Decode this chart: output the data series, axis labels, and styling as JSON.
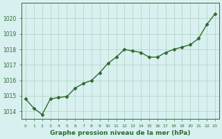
{
  "hours": [
    0,
    1,
    2,
    3,
    4,
    5,
    6,
    7,
    8,
    9,
    10,
    11,
    12,
    13,
    14,
    15,
    16,
    17,
    18,
    19,
    20,
    21,
    22,
    23
  ],
  "pressure": [
    1014.8,
    1014.2,
    1013.8,
    1014.8,
    1014.9,
    1014.95,
    1015.5,
    1015.8,
    1016.0,
    1016.5,
    1017.1,
    1017.5,
    1018.0,
    1017.9,
    1017.8,
    1017.5,
    1017.5,
    1017.8,
    1018.0,
    1018.15,
    1018.3,
    1018.7,
    1019.6,
    1020.3
  ],
  "line_color": "#2d6a2d",
  "marker_color": "#2d6a2d",
  "bg_color": "#d8f0f0",
  "grid_color": "#b0d0c0",
  "xlabel": "Graphe pression niveau de la mer (hPa)",
  "xlabel_color": "#2d6a2d",
  "tick_color": "#2d6a2d",
  "ylim_min": 1013.5,
  "ylim_max": 1021.0,
  "yticks": [
    1014,
    1015,
    1016,
    1017,
    1018,
    1019,
    1020
  ],
  "spine_color": "#2d6a2d"
}
